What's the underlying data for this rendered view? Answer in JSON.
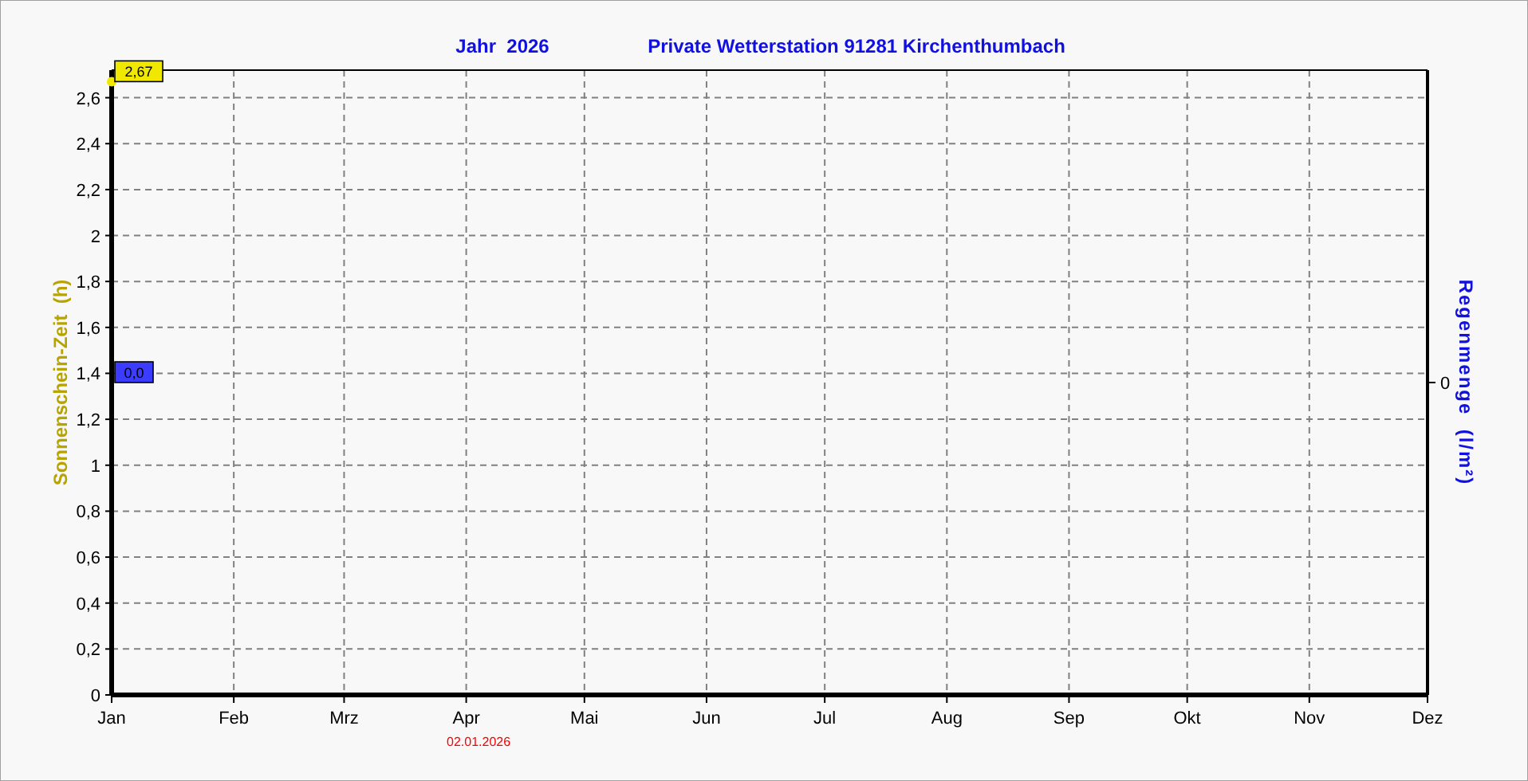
{
  "chart_data": {
    "type": "line",
    "title": "Jahr  2026",
    "subtitle": "Private Wetterstation 91281 Kirchenthumbach",
    "ylabel": "Sonnenschein-Zeit  (h)",
    "y2label": "Regenmenge  (l/m²)",
    "annotations": [
      "02.01.2026",
      "0",
      "0,0"
    ],
    "xlim": [
      "2026-01-01",
      "2026-12-01"
    ],
    "xticks": [
      {
        "value": "2026-01-01",
        "label": "Jan"
      },
      {
        "value": "2026-02-01",
        "label": "Feb"
      },
      {
        "value": "2026-03-01",
        "label": "Mrz"
      },
      {
        "value": "2026-04-01",
        "label": "Apr"
      },
      {
        "value": "2026-05-01",
        "label": "Mai"
      },
      {
        "value": "2026-06-01",
        "label": "Jun"
      },
      {
        "value": "2026-07-01",
        "label": "Jul"
      },
      {
        "value": "2026-08-01",
        "label": "Aug"
      },
      {
        "value": "2026-09-01",
        "label": "Sep"
      },
      {
        "value": "2026-10-01",
        "label": "Okt"
      },
      {
        "value": "2026-11-01",
        "label": "Nov"
      },
      {
        "value": "2026-12-01",
        "label": "Dez"
      }
    ],
    "ylim": [
      0,
      2.72
    ],
    "yticks": [
      0,
      {
        "value": 0.2,
        "label": "0,2"
      },
      {
        "value": 0.4,
        "label": "0,4"
      },
      {
        "value": 0.6,
        "label": "0,6"
      },
      {
        "value": 0.8,
        "label": "0,8"
      },
      1,
      {
        "value": 1.2,
        "label": "1,2"
      },
      {
        "value": 1.4,
        "label": "1,4"
      },
      {
        "value": 1.6,
        "label": "1,6"
      },
      {
        "value": 1.8,
        "label": "1,8"
      },
      2,
      {
        "value": 2.2,
        "label": "2,2"
      },
      {
        "value": 2.4,
        "label": "2,4"
      },
      {
        "value": 2.6,
        "label": "2,6"
      }
    ],
    "grid": true,
    "marker": "circle",
    "series": [
      {
        "color": "#f0e800",
        "x": [
          "2026-01-01"
        ],
        "values": [
          2.67
        ],
        "value_labels": [
          "2,67"
        ]
      }
    ]
  }
}
